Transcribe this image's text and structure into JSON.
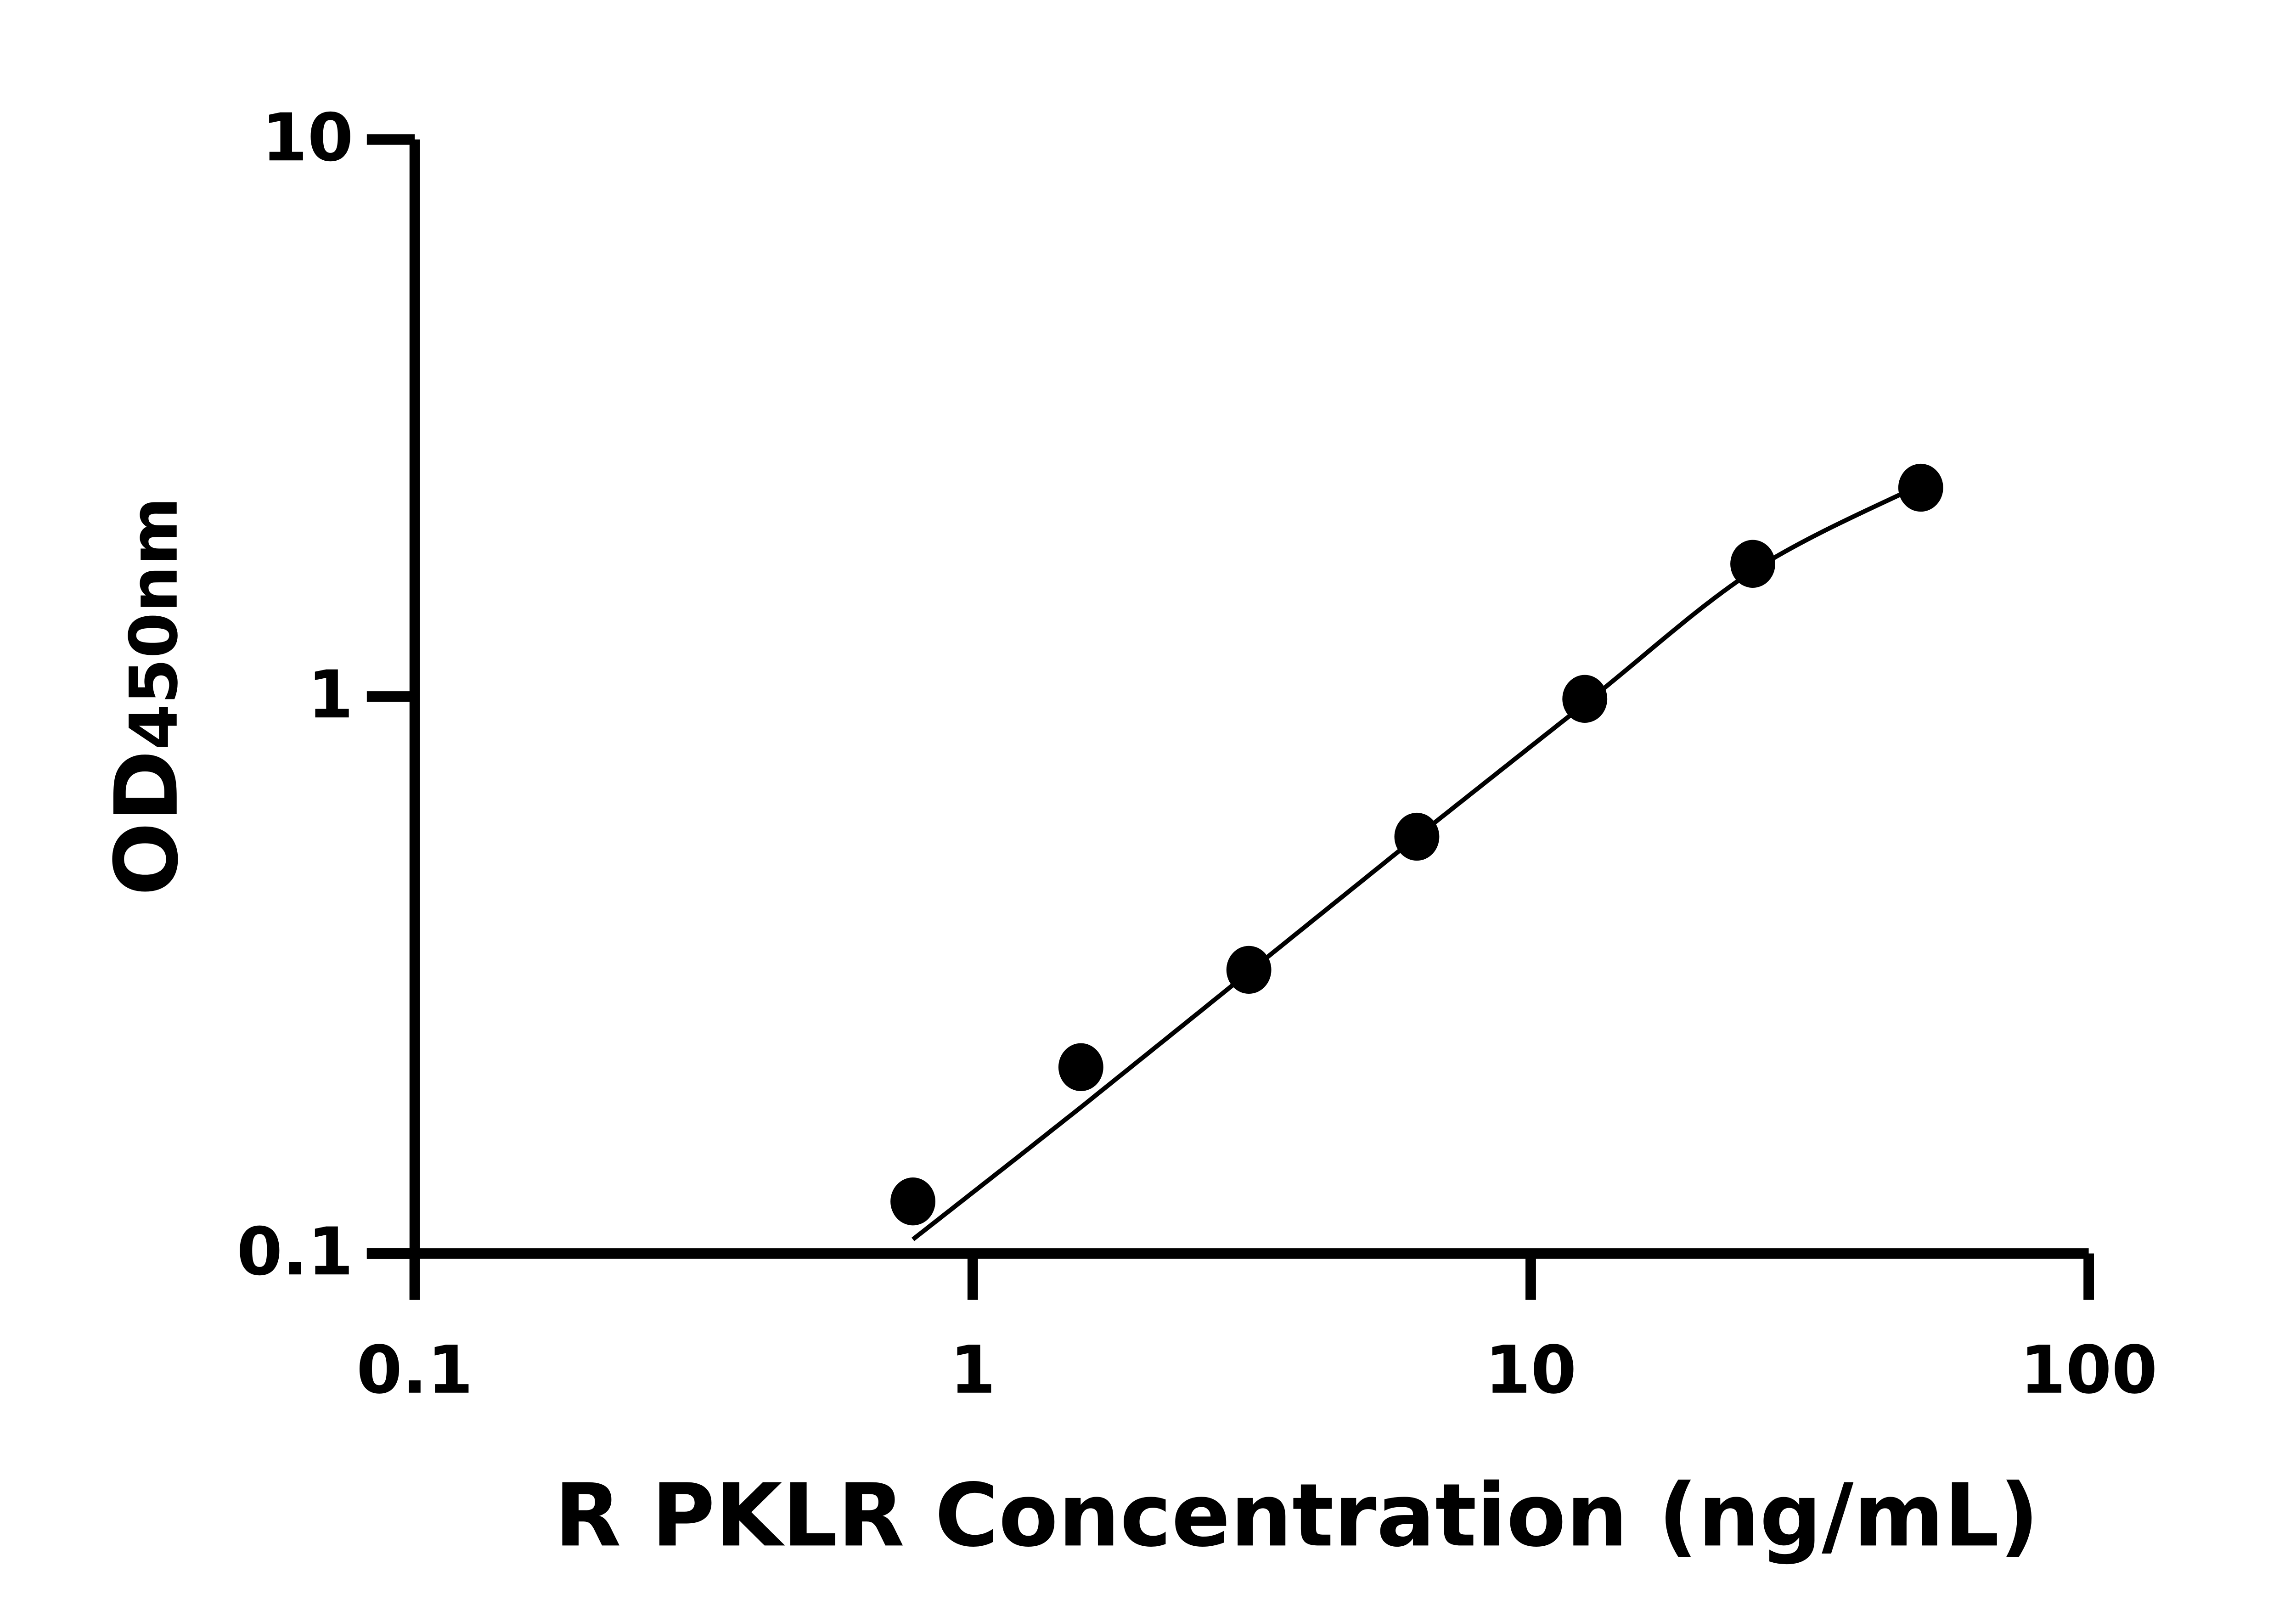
{
  "chart_data": {
    "type": "scatter",
    "title": "",
    "xlabel": "R PKLR Concentration (ng/mL)",
    "ylabel_main": "OD",
    "ylabel_sub": "450nm",
    "x_scale": "log",
    "y_scale": "log",
    "xlim": [
      0.1,
      100
    ],
    "ylim": [
      0.1,
      10
    ],
    "x_ticks": [
      "0.1",
      "1",
      "10",
      "100"
    ],
    "y_ticks": [
      "0.1",
      "1",
      "10"
    ],
    "x_tick_values": [
      0.1,
      1,
      10,
      100
    ],
    "y_tick_values": [
      0.1,
      1,
      10
    ],
    "grid": false,
    "legend": "none",
    "colors": {
      "points": "#000000",
      "curve": "#000000",
      "axes": "#000000"
    },
    "points": {
      "x": [
        0.78125,
        1.5625,
        3.125,
        6.25,
        12.5,
        25,
        50
      ],
      "y": [
        0.124,
        0.216,
        0.323,
        0.56,
        0.99,
        1.73,
        2.37
      ]
    },
    "fit_curve": {
      "x": [
        0.78125,
        1.5625,
        3.125,
        6.25,
        12.5,
        25,
        50
      ],
      "y": [
        0.106,
        0.183,
        0.32,
        0.56,
        0.97,
        1.68,
        2.4
      ]
    }
  }
}
